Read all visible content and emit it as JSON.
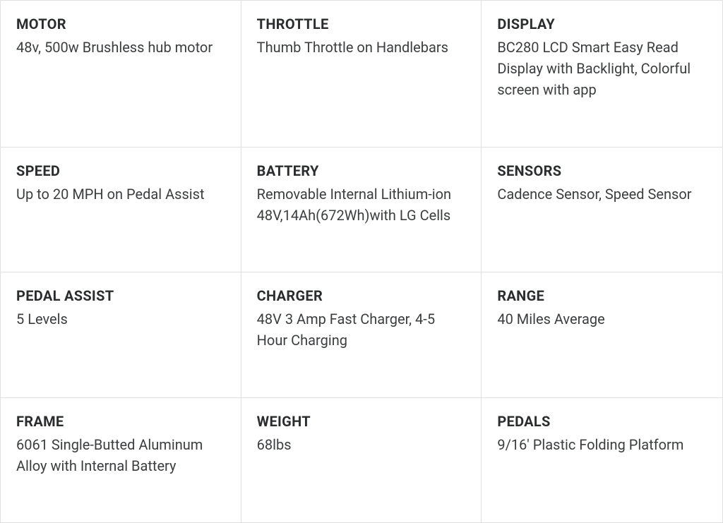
{
  "specs_table": {
    "type": "grid",
    "columns": 3,
    "rows": 4,
    "border_color": "#e0e0e0",
    "background_color": "#ffffff",
    "title_color": "#2a2c2e",
    "value_color": "#3b3d3f",
    "title_fontsize": 20,
    "title_fontweight": 700,
    "value_fontsize": 20,
    "value_fontweight": 400,
    "cell_padding": "20px 22px",
    "cells": [
      {
        "title": "MOTOR",
        "value": "48v, 500w Brushless hub motor"
      },
      {
        "title": "THROTTLE",
        "value": "Thumb Throttle on Handlebars"
      },
      {
        "title": "DISPLAY",
        "value": "BC280 LCD Smart Easy Read Display with Backlight, Colorful screen with app"
      },
      {
        "title": "SPEED",
        "value": "Up to 20 MPH on Pedal Assist"
      },
      {
        "title": "BATTERY",
        "value": "Removable Internal Lithium-ion 48V,14Ah(672Wh)with LG Cells"
      },
      {
        "title": "SENSORS",
        "value": "Cadence Sensor, Speed Sensor"
      },
      {
        "title": "PEDAL ASSIST",
        "value": "5 Levels"
      },
      {
        "title": "CHARGER",
        "value": "48V 3 Amp Fast Charger, 4-5 Hour Charging"
      },
      {
        "title": "RANGE",
        "value": "40 Miles Average"
      },
      {
        "title": "FRAME",
        "value": "6061 Single-Butted Aluminum Alloy with Internal Battery"
      },
      {
        "title": "WEIGHT",
        "value": "68lbs"
      },
      {
        "title": "PEDALS",
        "value": "9/16' Plastic Folding Platform"
      }
    ]
  }
}
